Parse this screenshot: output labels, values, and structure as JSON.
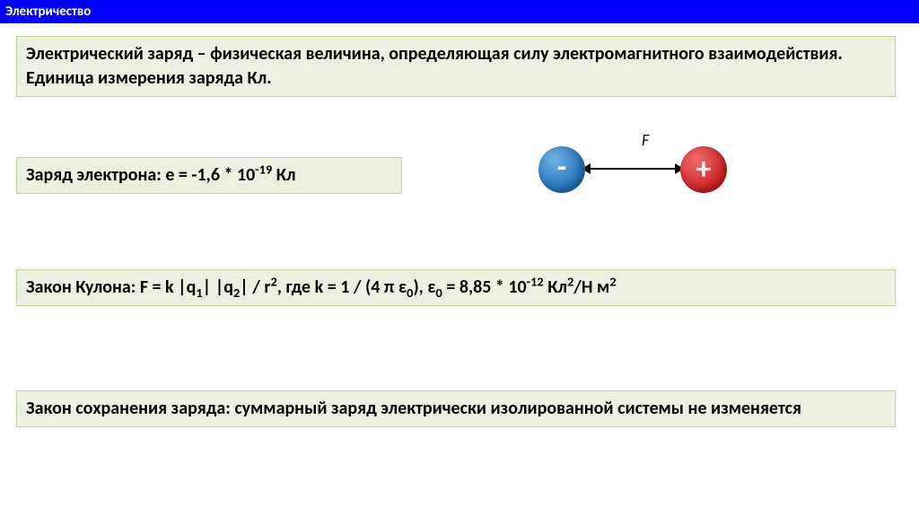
{
  "header": {
    "title": "Электричество"
  },
  "definition": {
    "text": "Электрический заряд  – физическая величина, определяющая силу электромагнитного взаимодействия. Единица измерения заряда Кл."
  },
  "electron_charge": {
    "prefix": "Заряд электрона: e = -1,6 * 10",
    "exp": "-19",
    "suffix": " Кл"
  },
  "diagram": {
    "force_label": "F",
    "neg_symbol": "-",
    "pos_symbol": "+",
    "neg_color": "#1f6db3",
    "pos_color": "#c81e1e"
  },
  "coulomb": {
    "p1": "Закон Кулона: F = k |q",
    "s1": "1",
    "p2": "|  |q",
    "s2": "2",
    "p3": "|   /  r",
    "e1": "2",
    "p4": ",   где k = 1 / (4 π ε",
    "s3": "0",
    "p5": "), ε",
    "s4": "0",
    "p6": " = 8,85 * 10",
    "e2": "-12",
    "p7": " Кл",
    "e3": "2",
    "p8": "/Н м",
    "e4": "2"
  },
  "conservation": {
    "text": "Закон сохранения заряда:  суммарный заряд электрически изолированной системы не изменяется"
  },
  "style": {
    "box_bg": "#ebf1de",
    "box_border": "#c4d79b",
    "header_bg": "#0000ff",
    "header_fg": "#ffffff",
    "font_size_body": 20,
    "font_size_header": 15
  }
}
